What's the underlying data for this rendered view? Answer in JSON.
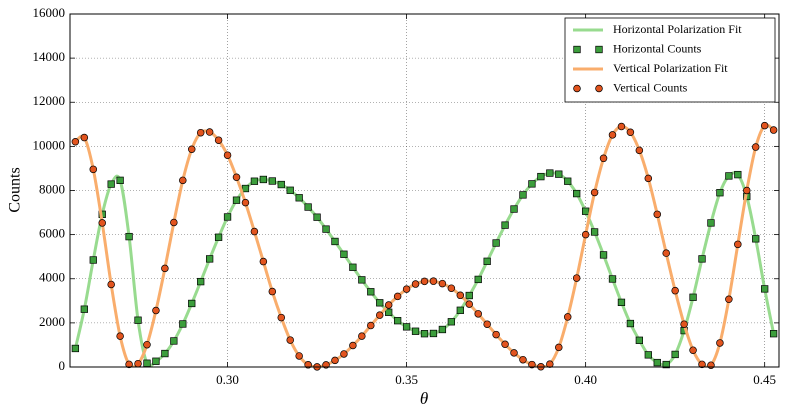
{
  "chart_data": {
    "type": "line",
    "x_label": "θ",
    "y_label": "Counts",
    "xlim": [
      0.256,
      0.454
    ],
    "ylim": [
      0,
      16000
    ],
    "xticks": [
      {
        "value": 0.3,
        "label": "0.30"
      },
      0.35,
      {
        "value": 0.4,
        "label": "0.40"
      },
      0.45
    ],
    "yticks": [
      0,
      2000,
      4000,
      6000,
      8000,
      10000,
      12000,
      14000,
      16000
    ],
    "grid": true,
    "legend": "upper right",
    "x": [
      0.2575,
      0.26,
      0.2625,
      0.265,
      0.2675,
      0.27,
      0.2725,
      0.275,
      0.2775,
      0.28,
      0.2825,
      0.285,
      0.2875,
      0.29,
      0.2925,
      0.295,
      0.2975,
      0.3,
      0.3025,
      0.305,
      0.3075,
      0.31,
      0.3125,
      0.315,
      0.3175,
      0.32,
      0.3225,
      0.325,
      0.3275,
      0.33,
      0.3325,
      0.335,
      0.3375,
      0.34,
      0.3425,
      0.345,
      0.3475,
      0.35,
      0.3525,
      0.355,
      0.3575,
      0.36,
      0.3625,
      0.365,
      0.3675,
      0.37,
      0.3725,
      0.375,
      0.3775,
      0.38,
      0.3825,
      0.385,
      0.3875,
      0.39,
      0.3925,
      0.395,
      0.3975,
      0.4,
      0.4025,
      0.405,
      0.4075,
      0.41,
      0.4125,
      0.415,
      0.4175,
      0.42,
      0.4225,
      0.425,
      0.4275,
      0.43,
      0.4325,
      0.435,
      0.4375,
      0.44,
      0.4425,
      0.445,
      0.4475,
      0.45,
      0.4525
    ],
    "series": [
      {
        "name": "Horizontal Polarization Fit",
        "kind": "line",
        "color": "#98db8f",
        "values": [
          840,
          2620,
          4850,
          6920,
          8290,
          8460,
          5910,
          2120,
          170,
          260,
          610,
          1180,
          1950,
          2880,
          3870,
          4900,
          5880,
          6800,
          7560,
          8090,
          8420,
          8500,
          8430,
          8270,
          8010,
          7670,
          7250,
          6790,
          6250,
          5690,
          5110,
          4520,
          3950,
          3410,
          2910,
          2480,
          2100,
          1820,
          1620,
          1510,
          1520,
          1700,
          2050,
          2570,
          3240,
          3970,
          4790,
          5620,
          6430,
          7160,
          7800,
          8300,
          8630,
          8790,
          8740,
          8420,
          7860,
          7060,
          6120,
          5080,
          3990,
          2930,
          1970,
          1210,
          550,
          200,
          110,
          570,
          1650,
          3160,
          4900,
          6530,
          7900,
          8660,
          8720,
          7730,
          5810,
          3540,
          1510
        ]
      },
      {
        "name": "Horizontal Counts",
        "kind": "scatter",
        "marker": "square",
        "color": "#3c9e3c",
        "values": [
          840,
          2620,
          4850,
          6920,
          8290,
          8460,
          5910,
          2120,
          170,
          260,
          610,
          1180,
          1950,
          2880,
          3870,
          4900,
          5880,
          6800,
          7560,
          8090,
          8420,
          8500,
          8430,
          8270,
          8010,
          7670,
          7250,
          6790,
          6250,
          5690,
          5110,
          4520,
          3950,
          3410,
          2910,
          2480,
          2100,
          1820,
          1620,
          1510,
          1520,
          1700,
          2050,
          2570,
          3240,
          3970,
          4790,
          5620,
          6430,
          7160,
          7800,
          8300,
          8630,
          8790,
          8740,
          8420,
          7860,
          7060,
          6120,
          5080,
          3990,
          2930,
          1970,
          1210,
          550,
          200,
          110,
          570,
          1650,
          3160,
          4900,
          6530,
          7900,
          8660,
          8720,
          7730,
          5810,
          3540,
          1510
        ]
      },
      {
        "name": "Vertical Polarization Fit",
        "kind": "line",
        "color": "#f9ad6c",
        "values": [
          10210,
          10400,
          8960,
          6530,
          3740,
          1400,
          120,
          150,
          1010,
          2560,
          4470,
          6550,
          8460,
          9870,
          10620,
          10650,
          10280,
          9600,
          8600,
          7450,
          6140,
          4780,
          3420,
          2240,
          1220,
          500,
          100,
          5,
          95,
          300,
          590,
          975,
          1400,
          1880,
          2350,
          2810,
          3200,
          3530,
          3760,
          3880,
          3890,
          3780,
          3570,
          3250,
          2850,
          2410,
          1940,
          1470,
          1030,
          640,
          330,
          110,
          10,
          130,
          890,
          2270,
          4030,
          6000,
          7910,
          9460,
          10520,
          10900,
          10640,
          9820,
          8550,
          6920,
          5160,
          3460,
          1940,
          760,
          120,
          80,
          1090,
          3070,
          5560,
          8000,
          9970,
          10940,
          10740
        ]
      },
      {
        "name": "Vertical Counts",
        "kind": "scatter",
        "marker": "circle",
        "color": "#e2541e",
        "values": [
          10210,
          10400,
          8960,
          6530,
          3740,
          1400,
          120,
          150,
          1010,
          2560,
          4470,
          6550,
          8460,
          9870,
          10620,
          10650,
          10280,
          9600,
          8600,
          7450,
          6140,
          4780,
          3420,
          2240,
          1220,
          500,
          100,
          5,
          95,
          300,
          590,
          975,
          1400,
          1880,
          2350,
          2810,
          3200,
          3530,
          3760,
          3880,
          3890,
          3780,
          3570,
          3250,
          2850,
          2410,
          1940,
          1470,
          1030,
          640,
          330,
          110,
          10,
          130,
          890,
          2270,
          4030,
          6000,
          7910,
          9460,
          10520,
          10900,
          10640,
          9820,
          8550,
          6920,
          5160,
          3460,
          1940,
          760,
          120,
          80,
          1090,
          3070,
          5560,
          8000,
          9970,
          10940,
          10740
        ]
      }
    ]
  }
}
